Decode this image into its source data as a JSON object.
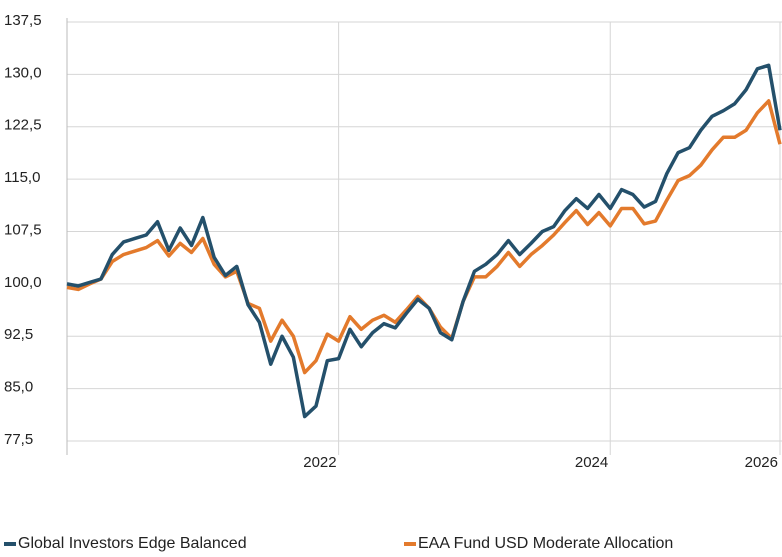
{
  "chart_data": {
    "type": "line",
    "categories": [
      null,
      null,
      null,
      null,
      null,
      null,
      null,
      null,
      null,
      null,
      null,
      null,
      null,
      null,
      null,
      null,
      null,
      null,
      null,
      null,
      null,
      null,
      null,
      null,
      "2022",
      null,
      null,
      null,
      null,
      null,
      null,
      null,
      null,
      null,
      null,
      null,
      null,
      null,
      null,
      null,
      null,
      null,
      null,
      null,
      null,
      null,
      null,
      null,
      "2024",
      null,
      null,
      null,
      null,
      null,
      null,
      null,
      null,
      null,
      null,
      null,
      null,
      null,
      null,
      "2026"
    ],
    "series": [
      {
        "name": "Global Investors Edge Balanced",
        "color": "#24506b",
        "values": [
          100.0,
          99.7,
          100.2,
          100.7,
          104.2,
          106.0,
          106.5,
          107.0,
          108.9,
          104.8,
          108.0,
          105.5,
          109.5,
          103.8,
          101.2,
          102.5,
          97.0,
          94.5,
          88.5,
          92.5,
          89.5,
          81.0,
          82.5,
          89.0,
          89.3,
          93.5,
          91.0,
          93.0,
          94.3,
          93.7,
          95.8,
          97.8,
          96.5,
          93.0,
          92.0,
          97.5,
          101.8,
          102.8,
          104.2,
          106.2,
          104.2,
          105.8,
          107.5,
          108.2,
          110.5,
          112.2,
          110.8,
          112.8,
          110.8,
          113.5,
          112.8,
          111.0,
          111.8,
          115.8,
          118.8,
          119.5,
          122.0,
          124.0,
          124.8,
          125.8,
          127.8,
          130.8,
          131.3,
          122.0
        ]
      },
      {
        "name": "EAA Fund USD Moderate Allocation",
        "color": "#e37a2c",
        "values": [
          99.5,
          99.2,
          100.0,
          100.7,
          103.2,
          104.2,
          104.7,
          105.2,
          106.2,
          104.0,
          105.8,
          104.5,
          106.5,
          102.8,
          101.0,
          101.8,
          97.2,
          96.5,
          91.8,
          94.8,
          92.5,
          87.3,
          89.0,
          92.8,
          91.8,
          95.3,
          93.5,
          94.8,
          95.5,
          94.5,
          96.3,
          98.2,
          96.5,
          93.8,
          92.2,
          97.5,
          101.0,
          101.0,
          102.5,
          104.5,
          102.5,
          104.2,
          105.5,
          107.0,
          108.8,
          110.5,
          108.5,
          110.2,
          108.3,
          110.8,
          110.8,
          108.6,
          109.0,
          112.0,
          114.8,
          115.5,
          117.0,
          119.2,
          121.0,
          121.0,
          122.0,
          124.5,
          126.2,
          120.0
        ]
      }
    ],
    "ylim": [
      77.5,
      137.5
    ],
    "yticks": [
      {
        "value": 77.5,
        "label": "77,5"
      },
      {
        "value": 85,
        "label": "85,0"
      },
      {
        "value": 92.5,
        "label": "92,5"
      },
      {
        "value": 100,
        "label": "100,0"
      },
      {
        "value": 107.5,
        "label": "107,5"
      },
      {
        "value": 115,
        "label": "115,0"
      },
      {
        "value": 122.5,
        "label": "122,5"
      },
      {
        "value": 130,
        "label": "130,0"
      },
      {
        "value": 137.5,
        "label": "137,5"
      }
    ],
    "grid": true
  }
}
